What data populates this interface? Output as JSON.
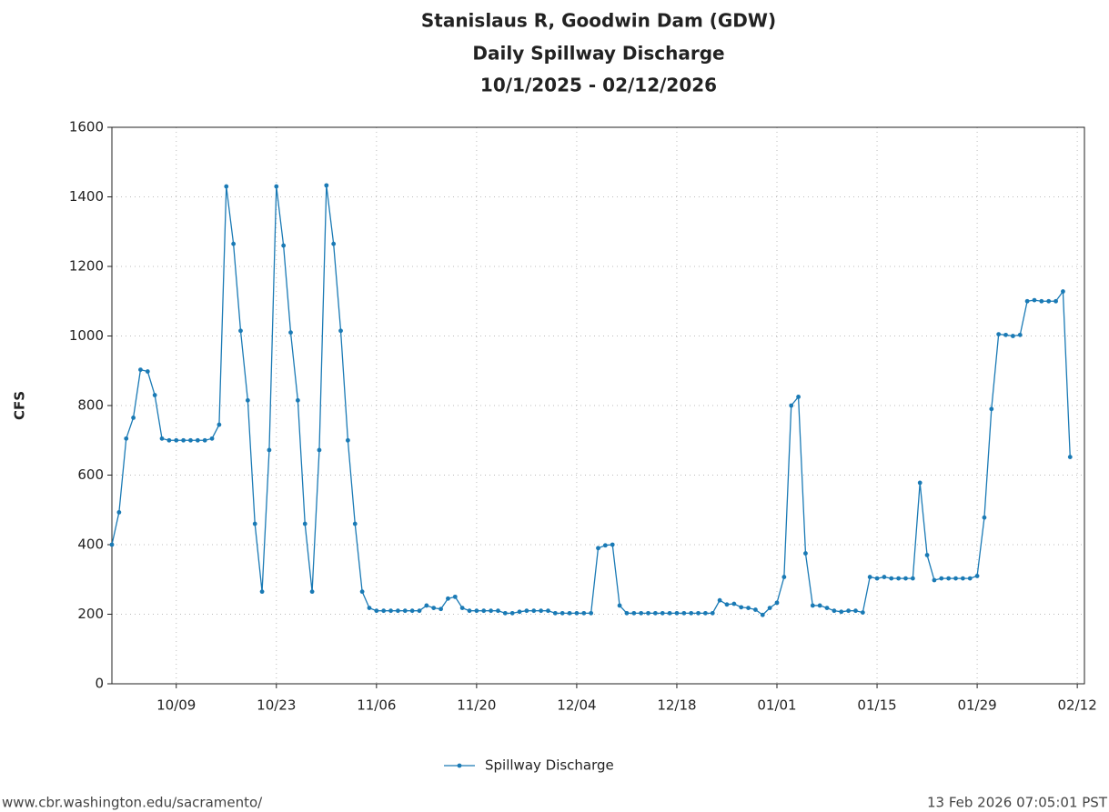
{
  "chart_data": {
    "type": "line",
    "title": "Stanislaus R, Goodwin Dam (GDW)",
    "subtitle": "Daily Spillway Discharge",
    "date_range": "10/1/2025 - 02/12/2026",
    "y_label": "CFS",
    "source": "www.cbr.washington.edu/sacramento/",
    "timestamp": "13 Feb 2026 07:05:01 PST",
    "x": [
      0,
      1,
      2,
      3,
      4,
      5,
      6,
      7,
      8,
      9,
      10,
      11,
      12,
      13,
      14,
      15,
      16,
      17,
      18,
      19,
      20,
      21,
      22,
      23,
      24,
      25,
      26,
      27,
      28,
      29,
      30,
      31,
      32,
      33,
      34,
      35,
      36,
      37,
      38,
      39,
      40,
      41,
      42,
      43,
      44,
      45,
      46,
      47,
      48,
      49,
      50,
      51,
      52,
      53,
      54,
      55,
      56,
      57,
      58,
      59,
      60,
      61,
      62,
      63,
      64,
      65,
      66,
      67,
      68,
      69,
      70,
      71,
      72,
      73,
      74,
      75,
      76,
      77,
      78,
      79,
      80,
      81,
      82,
      83,
      84,
      85,
      86,
      87,
      88,
      89,
      90,
      91,
      92,
      93,
      94,
      95,
      96,
      97,
      98,
      99,
      100,
      101,
      102,
      103,
      104,
      105,
      106,
      107,
      108,
      109,
      110,
      111,
      112,
      113,
      114,
      115,
      116,
      117,
      118,
      119,
      120,
      121,
      122,
      123,
      124,
      125,
      126,
      127,
      128,
      129,
      130,
      131,
      132,
      133,
      134
    ],
    "series": [
      {
        "name": "Spillway Discharge",
        "color": "#1a7ab5",
        "values": [
          400,
          493,
          705,
          765,
          903,
          898,
          830,
          705,
          700,
          700,
          700,
          700,
          700,
          700,
          705,
          745,
          1430,
          1265,
          1015,
          815,
          460,
          265,
          672,
          1430,
          1260,
          1010,
          815,
          460,
          265,
          672,
          1433,
          1265,
          1015,
          700,
          460,
          265,
          218,
          210,
          210,
          210,
          210,
          210,
          210,
          210,
          225,
          218,
          215,
          245,
          250,
          218,
          210,
          210,
          210,
          210,
          210,
          203,
          203,
          207,
          210,
          210,
          210,
          210,
          203,
          203,
          203,
          203,
          203,
          203,
          390,
          398,
          400,
          225,
          203,
          203,
          203,
          203,
          203,
          203,
          203,
          203,
          203,
          203,
          203,
          203,
          203,
          240,
          228,
          230,
          220,
          218,
          213,
          198,
          218,
          233,
          307,
          800,
          825,
          375,
          225,
          225,
          218,
          210,
          207,
          210,
          210,
          205,
          307,
          303,
          307,
          303,
          303,
          303,
          303,
          578,
          370,
          298,
          303,
          303,
          303,
          303,
          303,
          310,
          478,
          790,
          1005,
          1003,
          1000,
          1003,
          1100,
          1103,
          1100,
          1100,
          1100,
          1128,
          652
        ]
      }
    ],
    "xlim": [
      0,
      136
    ],
    "xticks": [
      {
        "value": 9,
        "label": "10/09"
      },
      {
        "value": 23,
        "label": "10/23"
      },
      {
        "value": 37,
        "label": "11/06"
      },
      {
        "value": 51,
        "label": "11/20"
      },
      {
        "value": 65,
        "label": "12/04"
      },
      {
        "value": 79,
        "label": "12/18"
      },
      {
        "value": 93,
        "label": "01/01"
      },
      {
        "value": 107,
        "label": "01/15"
      },
      {
        "value": 121,
        "label": "01/29"
      },
      {
        "value": 135,
        "label": "02/12"
      }
    ],
    "ylim": [
      0,
      1600
    ],
    "yticks": [
      0,
      200,
      400,
      600,
      800,
      1000,
      1200,
      1400,
      1600
    ],
    "grid": true
  }
}
